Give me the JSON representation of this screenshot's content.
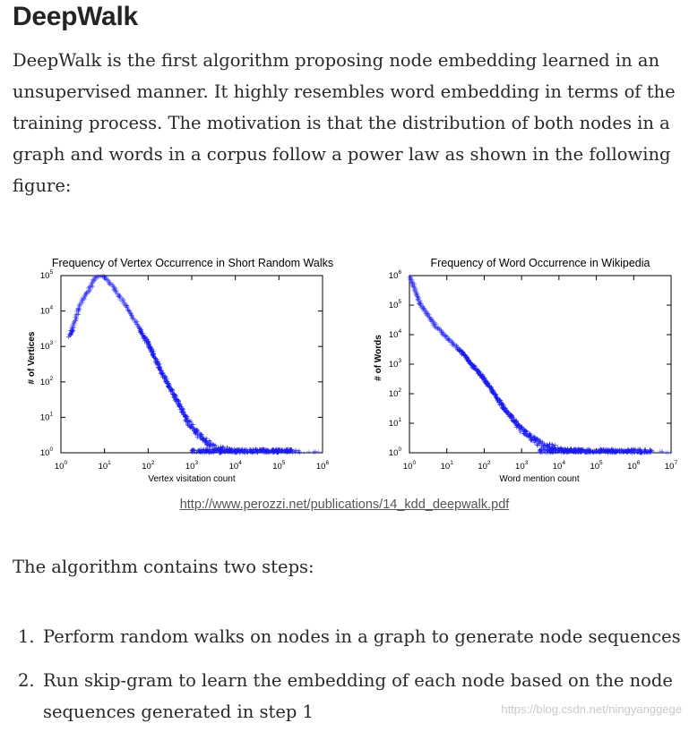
{
  "heading": "DeepWalk",
  "intro": "DeepWalk is the first algorithm proposing node embedding learned in an unsupervised manner. It highly resembles word embedding in terms of the training process. The motivation is that the distribution of both nodes in a graph and words in a corpus follow a power law as shown in the following figure:",
  "caption_link": "http://www.perozzi.net/publications/14_kdd_deepwalk.pdf",
  "steps_intro": "The algorithm contains two steps:",
  "steps": [
    {
      "num": "1.",
      "text": "Perform random walks on nodes in a graph to generate node sequences"
    },
    {
      "num": "2.",
      "text": "Run skip-gram to learn the embedding of each node based on the node sequences generated in step 1"
    }
  ],
  "watermark": "https://blog.csdn.net/ningyanggege",
  "colors": {
    "points": "#1a1aee",
    "text": "#292929"
  },
  "chart_data": [
    {
      "type": "scatter",
      "title": "Frequency of Vertex Occurrence in Short Random Walks",
      "xlabel": "Vertex visitation count",
      "ylabel": "# of Vertices",
      "scale": "log-log",
      "xlim": [
        1,
        1000000
      ],
      "ylim": [
        1,
        100000
      ],
      "x_ticks": [
        "10^0",
        "10^1",
        "10^2",
        "10^3",
        "10^4",
        "10^5",
        "10^6"
      ],
      "y_ticks": [
        "10^0",
        "10^1",
        "10^2",
        "10^3",
        "10^4",
        "10^5"
      ],
      "marker": "+",
      "x": [
        1.6,
        3,
        5,
        6,
        7,
        8,
        10,
        15,
        30,
        60,
        100,
        200,
        400,
        800,
        1500,
        3000,
        6000,
        12000,
        50000,
        100000,
        300000
      ],
      "y": [
        2000,
        20000,
        50000,
        90000,
        100000,
        100000,
        90000,
        50000,
        15000,
        3500,
        1200,
        200,
        40,
        8,
        3,
        1.5,
        1.2,
        1,
        1,
        1,
        1
      ]
    },
    {
      "type": "scatter",
      "title": "Frequency of Word Occurrence in Wikipedia",
      "xlabel": "Word mention count",
      "ylabel": "# of Words",
      "scale": "log-log",
      "xlim": [
        1,
        10000000
      ],
      "ylim": [
        1,
        1000000
      ],
      "x_ticks": [
        "10^0",
        "10^1",
        "10^2",
        "10^3",
        "10^4",
        "10^5",
        "10^6",
        "10^7"
      ],
      "y_ticks": [
        "10^0",
        "10^1",
        "10^2",
        "10^3",
        "10^4",
        "10^5",
        "10^6"
      ],
      "marker": "+",
      "x": [
        1,
        2,
        3,
        5,
        10,
        30,
        100,
        300,
        1000,
        3000,
        10000,
        30000,
        100000,
        300000,
        1000000,
        3000000
      ],
      "y": [
        1000000,
        100000,
        50000,
        20000,
        8000,
        2000,
        300,
        40,
        6,
        2,
        1.3,
        1,
        1,
        1,
        1,
        1
      ]
    }
  ]
}
